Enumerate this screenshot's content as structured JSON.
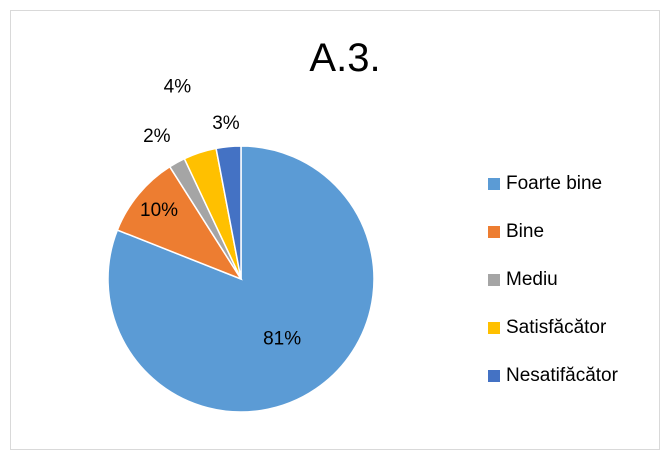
{
  "chart_data": {
    "type": "pie",
    "title": "A.3.",
    "legend_position": "right",
    "slices": [
      {
        "label": "Foarte bine",
        "value": 81,
        "display": "81%",
        "color": "#5B9BD5"
      },
      {
        "label": "Bine",
        "value": 10,
        "display": "10%",
        "color": "#ED7D31"
      },
      {
        "label": "Mediu",
        "value": 2,
        "display": "2%",
        "color": "#A5A5A5"
      },
      {
        "label": "Satisfăcător",
        "value": 4,
        "display": "4%",
        "color": "#FFC000"
      },
      {
        "label": "Nesatifăcător",
        "value": 3,
        "display": "3%",
        "color": "#4472C4"
      }
    ]
  }
}
